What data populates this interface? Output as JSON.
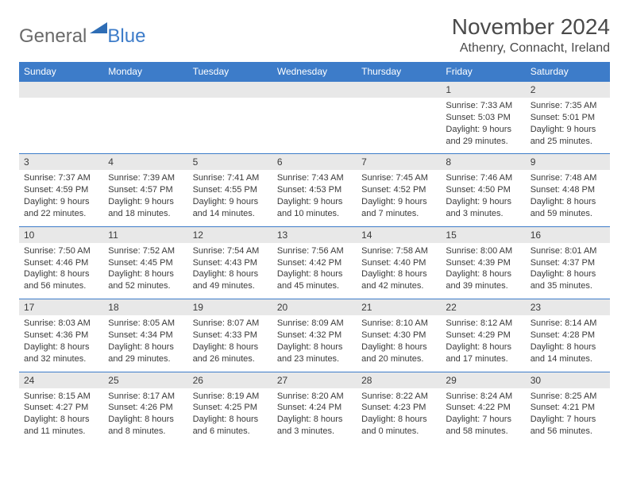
{
  "logo": {
    "general": "General",
    "blue": "Blue"
  },
  "header": {
    "title": "November 2024",
    "location": "Athenry, Connacht, Ireland"
  },
  "colors": {
    "brand_blue": "#3d7cc9",
    "gray_text": "#6a6a6a",
    "dark_text": "#4a4a4a",
    "body_text": "#3a3a3a",
    "daynum_bg": "#e8e8e8",
    "header_bg": "#3d7cc9",
    "header_fg": "#ffffff"
  },
  "day_labels": [
    "Sunday",
    "Monday",
    "Tuesday",
    "Wednesday",
    "Thursday",
    "Friday",
    "Saturday"
  ],
  "weeks": [
    {
      "nums": [
        "",
        "",
        "",
        "",
        "",
        "1",
        "2"
      ],
      "cells": [
        {
          "sr": "",
          "ss": "",
          "dl": ""
        },
        {
          "sr": "",
          "ss": "",
          "dl": ""
        },
        {
          "sr": "",
          "ss": "",
          "dl": ""
        },
        {
          "sr": "",
          "ss": "",
          "dl": ""
        },
        {
          "sr": "",
          "ss": "",
          "dl": ""
        },
        {
          "sr": "Sunrise: 7:33 AM",
          "ss": "Sunset: 5:03 PM",
          "dl": "Daylight: 9 hours and 29 minutes."
        },
        {
          "sr": "Sunrise: 7:35 AM",
          "ss": "Sunset: 5:01 PM",
          "dl": "Daylight: 9 hours and 25 minutes."
        }
      ]
    },
    {
      "nums": [
        "3",
        "4",
        "5",
        "6",
        "7",
        "8",
        "9"
      ],
      "cells": [
        {
          "sr": "Sunrise: 7:37 AM",
          "ss": "Sunset: 4:59 PM",
          "dl": "Daylight: 9 hours and 22 minutes."
        },
        {
          "sr": "Sunrise: 7:39 AM",
          "ss": "Sunset: 4:57 PM",
          "dl": "Daylight: 9 hours and 18 minutes."
        },
        {
          "sr": "Sunrise: 7:41 AM",
          "ss": "Sunset: 4:55 PM",
          "dl": "Daylight: 9 hours and 14 minutes."
        },
        {
          "sr": "Sunrise: 7:43 AM",
          "ss": "Sunset: 4:53 PM",
          "dl": "Daylight: 9 hours and 10 minutes."
        },
        {
          "sr": "Sunrise: 7:45 AM",
          "ss": "Sunset: 4:52 PM",
          "dl": "Daylight: 9 hours and 7 minutes."
        },
        {
          "sr": "Sunrise: 7:46 AM",
          "ss": "Sunset: 4:50 PM",
          "dl": "Daylight: 9 hours and 3 minutes."
        },
        {
          "sr": "Sunrise: 7:48 AM",
          "ss": "Sunset: 4:48 PM",
          "dl": "Daylight: 8 hours and 59 minutes."
        }
      ]
    },
    {
      "nums": [
        "10",
        "11",
        "12",
        "13",
        "14",
        "15",
        "16"
      ],
      "cells": [
        {
          "sr": "Sunrise: 7:50 AM",
          "ss": "Sunset: 4:46 PM",
          "dl": "Daylight: 8 hours and 56 minutes."
        },
        {
          "sr": "Sunrise: 7:52 AM",
          "ss": "Sunset: 4:45 PM",
          "dl": "Daylight: 8 hours and 52 minutes."
        },
        {
          "sr": "Sunrise: 7:54 AM",
          "ss": "Sunset: 4:43 PM",
          "dl": "Daylight: 8 hours and 49 minutes."
        },
        {
          "sr": "Sunrise: 7:56 AM",
          "ss": "Sunset: 4:42 PM",
          "dl": "Daylight: 8 hours and 45 minutes."
        },
        {
          "sr": "Sunrise: 7:58 AM",
          "ss": "Sunset: 4:40 PM",
          "dl": "Daylight: 8 hours and 42 minutes."
        },
        {
          "sr": "Sunrise: 8:00 AM",
          "ss": "Sunset: 4:39 PM",
          "dl": "Daylight: 8 hours and 39 minutes."
        },
        {
          "sr": "Sunrise: 8:01 AM",
          "ss": "Sunset: 4:37 PM",
          "dl": "Daylight: 8 hours and 35 minutes."
        }
      ]
    },
    {
      "nums": [
        "17",
        "18",
        "19",
        "20",
        "21",
        "22",
        "23"
      ],
      "cells": [
        {
          "sr": "Sunrise: 8:03 AM",
          "ss": "Sunset: 4:36 PM",
          "dl": "Daylight: 8 hours and 32 minutes."
        },
        {
          "sr": "Sunrise: 8:05 AM",
          "ss": "Sunset: 4:34 PM",
          "dl": "Daylight: 8 hours and 29 minutes."
        },
        {
          "sr": "Sunrise: 8:07 AM",
          "ss": "Sunset: 4:33 PM",
          "dl": "Daylight: 8 hours and 26 minutes."
        },
        {
          "sr": "Sunrise: 8:09 AM",
          "ss": "Sunset: 4:32 PM",
          "dl": "Daylight: 8 hours and 23 minutes."
        },
        {
          "sr": "Sunrise: 8:10 AM",
          "ss": "Sunset: 4:30 PM",
          "dl": "Daylight: 8 hours and 20 minutes."
        },
        {
          "sr": "Sunrise: 8:12 AM",
          "ss": "Sunset: 4:29 PM",
          "dl": "Daylight: 8 hours and 17 minutes."
        },
        {
          "sr": "Sunrise: 8:14 AM",
          "ss": "Sunset: 4:28 PM",
          "dl": "Daylight: 8 hours and 14 minutes."
        }
      ]
    },
    {
      "nums": [
        "24",
        "25",
        "26",
        "27",
        "28",
        "29",
        "30"
      ],
      "cells": [
        {
          "sr": "Sunrise: 8:15 AM",
          "ss": "Sunset: 4:27 PM",
          "dl": "Daylight: 8 hours and 11 minutes."
        },
        {
          "sr": "Sunrise: 8:17 AM",
          "ss": "Sunset: 4:26 PM",
          "dl": "Daylight: 8 hours and 8 minutes."
        },
        {
          "sr": "Sunrise: 8:19 AM",
          "ss": "Sunset: 4:25 PM",
          "dl": "Daylight: 8 hours and 6 minutes."
        },
        {
          "sr": "Sunrise: 8:20 AM",
          "ss": "Sunset: 4:24 PM",
          "dl": "Daylight: 8 hours and 3 minutes."
        },
        {
          "sr": "Sunrise: 8:22 AM",
          "ss": "Sunset: 4:23 PM",
          "dl": "Daylight: 8 hours and 0 minutes."
        },
        {
          "sr": "Sunrise: 8:24 AM",
          "ss": "Sunset: 4:22 PM",
          "dl": "Daylight: 7 hours and 58 minutes."
        },
        {
          "sr": "Sunrise: 8:25 AM",
          "ss": "Sunset: 4:21 PM",
          "dl": "Daylight: 7 hours and 56 minutes."
        }
      ]
    }
  ]
}
